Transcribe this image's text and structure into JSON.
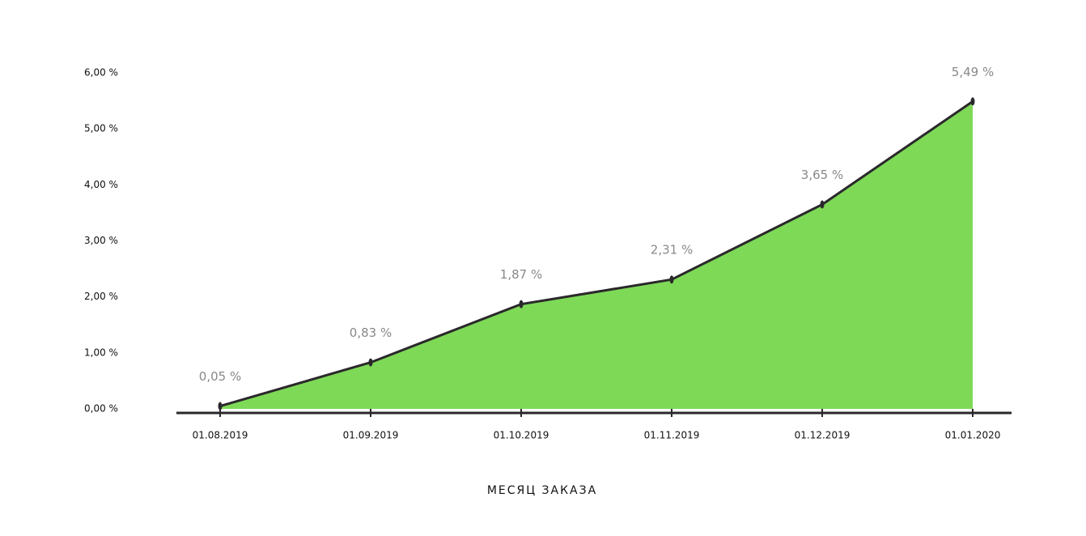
{
  "chart_data": {
    "type": "area",
    "x_label": "МЕСЯЦ ЗАКАЗА",
    "categories": [
      "01.08.2019",
      "01.09.2019",
      "01.10.2019",
      "01.11.2019",
      "01.12.2019",
      "01.01.2020"
    ],
    "values": [
      0.05,
      0.83,
      1.87,
      2.31,
      3.65,
      5.49
    ],
    "value_labels": [
      "0,05 %",
      "0,83 %",
      "1,87 %",
      "2,31 %",
      "3,65 %",
      "5,49 %"
    ],
    "color": "#7ed957",
    "line_color": "#2b282c",
    "ylim": [
      0,
      6
    ],
    "yticks": [
      {
        "value": 0,
        "label": "0,00 %"
      },
      {
        "value": 1,
        "label": "1,00 %"
      },
      {
        "value": 2,
        "label": "2,00 %"
      },
      {
        "value": 3,
        "label": "3,00 %"
      },
      {
        "value": 4,
        "label": "4,00 %"
      },
      {
        "value": 5,
        "label": "5,00 %"
      },
      {
        "value": 6,
        "label": "6,00 %"
      }
    ],
    "grid": false
  }
}
